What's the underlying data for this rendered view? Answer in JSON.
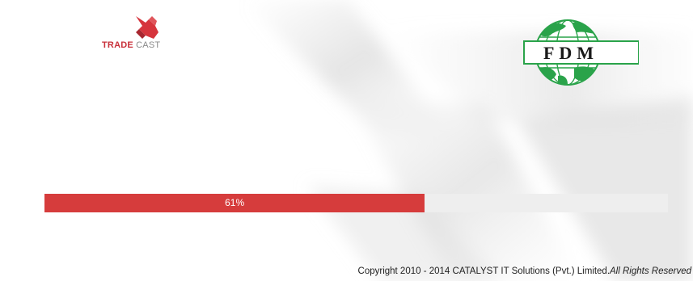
{
  "logos": {
    "tradecast": {
      "word1": "TRADE",
      "word2": "CAST"
    },
    "fdm": {
      "text": "FDM"
    }
  },
  "progress": {
    "percent": 61,
    "label": "61%"
  },
  "footer": {
    "copyright": "Copyright 2010 - 2014 CATALYST IT Solutions (Pvt.) Limited.",
    "rights": "All Rights Reserved"
  },
  "colors": {
    "progress_fill": "#d63c3c",
    "progress_track": "#eeeeee",
    "fdm_green": "#2aa34a",
    "tradecast_red": "#c8303a"
  }
}
